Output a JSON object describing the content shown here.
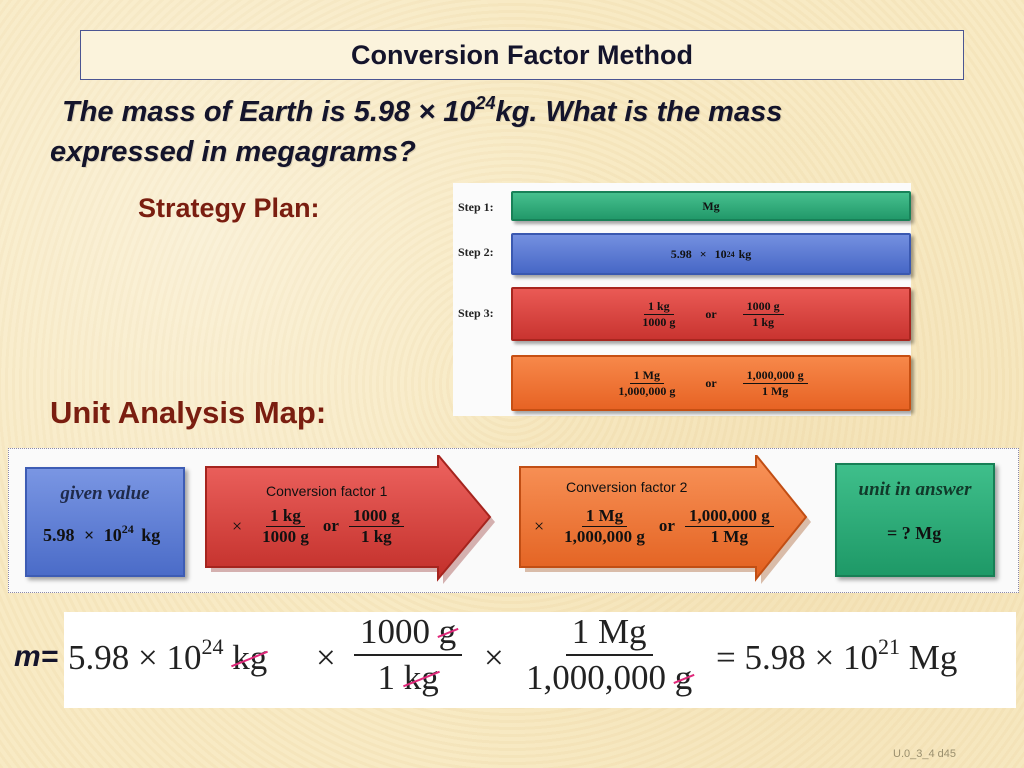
{
  "title": "Conversion Factor Method",
  "question": {
    "line1_pre": "The mass of Earth is 5.98 × 10",
    "line1_exp": "24",
    "line1_post": "kg. What is the mass",
    "line2": "expressed in megagrams?"
  },
  "strategy_label": "Strategy Plan:",
  "strategy_plan": {
    "step1": {
      "label": "Step 1:",
      "text": "Mg"
    },
    "step2": {
      "label": "Step 2:",
      "base": "5.98",
      "times": "×",
      "power": "10",
      "exp": "24",
      "unit": "kg"
    },
    "step3": {
      "label": "Step 3:",
      "row1": {
        "frac1_num": "1 kg",
        "frac1_den": "1000 g",
        "or": "or",
        "frac2_num": "1000 g",
        "frac2_den": "1 kg"
      },
      "row2": {
        "frac1_num": "1 Mg",
        "frac1_den": "1,000,000 g",
        "or": "or",
        "frac2_num": "1,000,000 g",
        "frac2_den": "1 Mg"
      }
    }
  },
  "unit_map_label": "Unit Analysis Map:",
  "unit_map": {
    "given": {
      "title": "given value",
      "base": "5.98",
      "times": "×",
      "power": "10",
      "exp": "24",
      "unit": "kg"
    },
    "factor1": {
      "label": "Conversion factor 1",
      "times": "×",
      "num1": "1 kg",
      "den1": "1000 g",
      "or": "or",
      "num2": "1000 g",
      "den2": "1 kg"
    },
    "factor2": {
      "label": "Conversion factor 2",
      "times": "×",
      "num1": "1 Mg",
      "den1": "1,000,000 g",
      "or": "or",
      "num2": "1,000,000 g",
      "den2": "1 Mg"
    },
    "answer": {
      "title": "unit in answer",
      "text": "= ? Mg"
    }
  },
  "equation": {
    "m_label": "m=",
    "given_base": "5.98 × 10",
    "given_exp": "24",
    "given_unit": "kg",
    "times": "×",
    "frac1_num_value": "1000",
    "frac1_num_unit": "g",
    "frac1_den_value": "1",
    "frac1_den_unit": "kg",
    "frac2_num": "1 Mg",
    "frac2_den_value": "1,000,000",
    "frac2_den_unit": "g",
    "result_pre": "= 5.98 × 10",
    "result_exp": "21",
    "result_unit": "Mg"
  },
  "colors": {
    "step1": "#22996a",
    "step2": "#4767c6",
    "step3": "#c93430",
    "step4": "#e76324",
    "heading": "#7a1e10"
  },
  "footer": "U.0_3_4 d45"
}
